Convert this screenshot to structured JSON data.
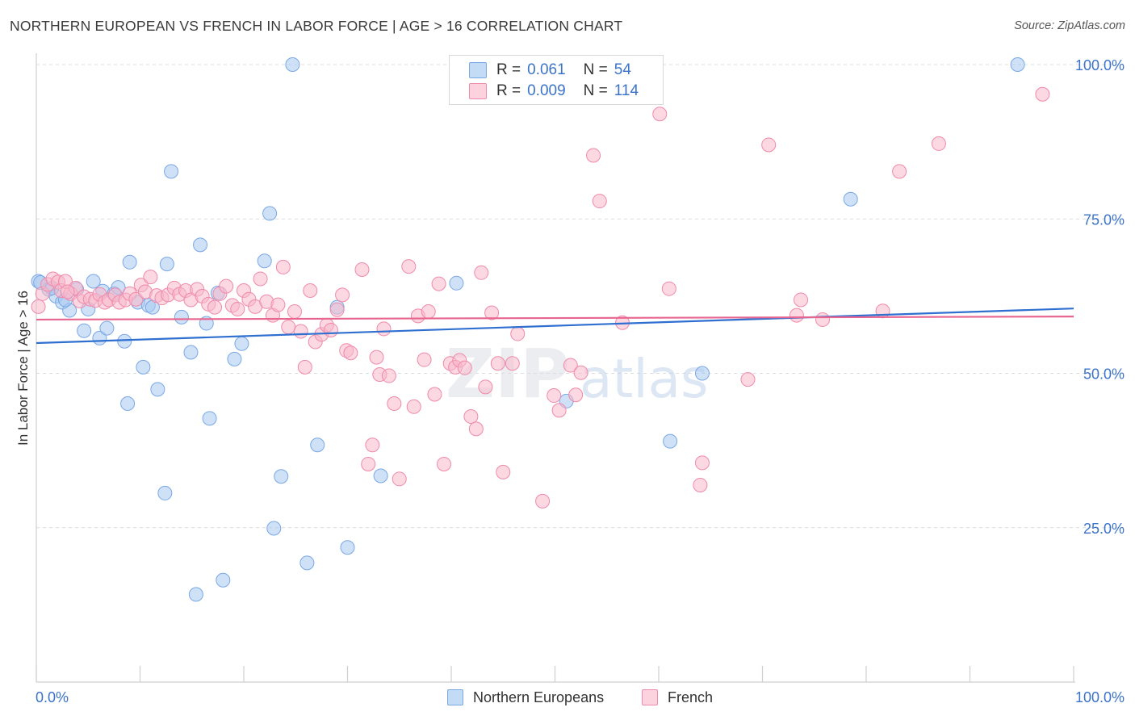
{
  "header": {
    "title": "NORTHERN EUROPEAN VS FRENCH IN LABOR FORCE | AGE > 16 CORRELATION CHART",
    "source": "Source: ZipAtlas.com"
  },
  "watermark": {
    "zip": "ZIP",
    "atlas": "atlas"
  },
  "legend_top": {
    "rows": [
      {
        "r_label": "R =",
        "r_value": "0.061",
        "n_label": "N =",
        "n_value": "54",
        "color": "#a8c8f0"
      },
      {
        "r_label": "R =",
        "r_value": "0.009",
        "n_label": "N =",
        "n_value": "114",
        "color": "#f7b8cb"
      }
    ]
  },
  "legend_bottom": {
    "northern": "Northern Europeans",
    "french": "French"
  },
  "chart_data": {
    "type": "scatter",
    "title": "NORTHERN EUROPEAN VS FRENCH IN LABOR FORCE | AGE > 16 CORRELATION CHART",
    "xlabel": "",
    "ylabel": "In Labor Force | Age > 16",
    "xlim": [
      0,
      100
    ],
    "ylim": [
      0,
      100
    ],
    "x_tick_labels": [
      "0.0%",
      "100.0%"
    ],
    "y_tick_labels": [
      "25.0%",
      "50.0%",
      "75.0%",
      "100.0%"
    ],
    "y_ticks": [
      25,
      50,
      75,
      100
    ],
    "grid": true,
    "series": [
      {
        "name": "Northern Europeans",
        "color": "#7aa8e6",
        "fill": "#a8c8f0",
        "line_color": "#2f6fd0",
        "trend": [
          [
            0,
            54.9
          ],
          [
            100,
            60.5
          ]
        ],
        "points": [
          [
            0.2,
            64.9
          ],
          [
            1.2,
            63.6
          ],
          [
            1.9,
            62.5
          ],
          [
            2.5,
            61.5
          ],
          [
            3.2,
            60.2
          ],
          [
            3.9,
            63.6
          ],
          [
            4.6,
            56.9
          ],
          [
            5.0,
            60.4
          ],
          [
            5.5,
            64.9
          ],
          [
            6.1,
            55.7
          ],
          [
            6.4,
            63.3
          ],
          [
            6.8,
            57.3
          ],
          [
            7.5,
            62.9
          ],
          [
            7.9,
            63.9
          ],
          [
            8.5,
            55.2
          ],
          [
            8.8,
            45.1
          ],
          [
            9.0,
            68.0
          ],
          [
            9.8,
            61.5
          ],
          [
            10.3,
            51.0
          ],
          [
            10.8,
            61.0
          ],
          [
            11.2,
            60.7
          ],
          [
            11.7,
            47.4
          ],
          [
            12.4,
            30.6
          ],
          [
            12.6,
            67.7
          ],
          [
            13.0,
            82.7
          ],
          [
            14.0,
            59.1
          ],
          [
            14.9,
            53.4
          ],
          [
            15.4,
            14.2
          ],
          [
            15.8,
            70.8
          ],
          [
            16.4,
            58.1
          ],
          [
            16.7,
            42.7
          ],
          [
            17.5,
            63.0
          ],
          [
            18.0,
            16.5
          ],
          [
            19.1,
            52.3
          ],
          [
            19.8,
            54.8
          ],
          [
            22.0,
            68.2
          ],
          [
            22.5,
            75.9
          ],
          [
            22.9,
            24.9
          ],
          [
            23.6,
            33.3
          ],
          [
            24.7,
            100.0
          ],
          [
            26.1,
            19.3
          ],
          [
            27.1,
            38.4
          ],
          [
            29.0,
            60.7
          ],
          [
            30.0,
            21.8
          ],
          [
            33.2,
            33.4
          ],
          [
            40.5,
            64.6
          ],
          [
            51.1,
            45.5
          ],
          [
            61.1,
            39.0
          ],
          [
            64.2,
            50.0
          ],
          [
            78.5,
            78.2
          ],
          [
            94.6,
            100.0
          ],
          [
            0.4,
            64.7
          ],
          [
            1.5,
            63.8
          ],
          [
            2.8,
            61.9
          ]
        ]
      },
      {
        "name": "French",
        "color": "#f08aaa",
        "fill": "#f7b8cb",
        "line_color": "#e8658f",
        "trend": [
          [
            0,
            58.7
          ],
          [
            100,
            59.2
          ]
        ],
        "points": [
          [
            0.2,
            60.8
          ],
          [
            0.6,
            62.9
          ],
          [
            1.1,
            64.4
          ],
          [
            1.6,
            65.3
          ],
          [
            2.1,
            64.8
          ],
          [
            2.4,
            63.4
          ],
          [
            2.8,
            64.9
          ],
          [
            3.3,
            62.9
          ],
          [
            3.8,
            63.8
          ],
          [
            4.2,
            61.7
          ],
          [
            4.6,
            62.4
          ],
          [
            5.2,
            62.0
          ],
          [
            5.7,
            61.8
          ],
          [
            6.1,
            62.8
          ],
          [
            6.6,
            61.5
          ],
          [
            7.0,
            61.9
          ],
          [
            7.6,
            62.7
          ],
          [
            8.0,
            61.5
          ],
          [
            8.6,
            61.9
          ],
          [
            9.0,
            62.9
          ],
          [
            9.6,
            62.0
          ],
          [
            10.1,
            64.3
          ],
          [
            10.5,
            63.2
          ],
          [
            11.0,
            65.6
          ],
          [
            11.6,
            62.6
          ],
          [
            12.1,
            62.2
          ],
          [
            12.7,
            62.7
          ],
          [
            13.3,
            63.8
          ],
          [
            13.8,
            62.8
          ],
          [
            14.4,
            63.4
          ],
          [
            14.9,
            61.9
          ],
          [
            15.5,
            63.6
          ],
          [
            16.0,
            62.5
          ],
          [
            16.6,
            61.2
          ],
          [
            17.2,
            60.7
          ],
          [
            17.7,
            62.9
          ],
          [
            18.3,
            64.1
          ],
          [
            18.9,
            61.0
          ],
          [
            19.4,
            60.4
          ],
          [
            20.0,
            63.4
          ],
          [
            20.5,
            62.0
          ],
          [
            21.1,
            60.8
          ],
          [
            21.6,
            65.3
          ],
          [
            22.2,
            61.6
          ],
          [
            22.8,
            59.4
          ],
          [
            23.3,
            61.1
          ],
          [
            23.8,
            67.2
          ],
          [
            24.3,
            57.5
          ],
          [
            24.9,
            60.0
          ],
          [
            25.5,
            56.8
          ],
          [
            25.9,
            51.0
          ],
          [
            26.4,
            63.4
          ],
          [
            26.9,
            55.1
          ],
          [
            27.5,
            56.3
          ],
          [
            28.0,
            57.8
          ],
          [
            28.4,
            57.0
          ],
          [
            29.0,
            60.3
          ],
          [
            29.5,
            62.7
          ],
          [
            29.9,
            53.7
          ],
          [
            30.3,
            53.3
          ],
          [
            31.4,
            66.8
          ],
          [
            32.0,
            35.3
          ],
          [
            32.4,
            38.4
          ],
          [
            32.8,
            52.6
          ],
          [
            33.1,
            49.8
          ],
          [
            33.5,
            57.2
          ],
          [
            34.0,
            49.6
          ],
          [
            34.5,
            45.1
          ],
          [
            35.0,
            32.9
          ],
          [
            35.9,
            67.3
          ],
          [
            36.4,
            44.6
          ],
          [
            36.8,
            59.3
          ],
          [
            37.4,
            52.2
          ],
          [
            37.8,
            60.0
          ],
          [
            38.4,
            46.6
          ],
          [
            38.8,
            64.5
          ],
          [
            39.3,
            35.3
          ],
          [
            39.9,
            51.6
          ],
          [
            40.4,
            51.0
          ],
          [
            40.8,
            52.1
          ],
          [
            41.3,
            50.9
          ],
          [
            41.9,
            43.0
          ],
          [
            42.4,
            41.0
          ],
          [
            42.9,
            66.3
          ],
          [
            43.3,
            47.8
          ],
          [
            43.9,
            59.8
          ],
          [
            44.5,
            51.6
          ],
          [
            45.0,
            34.0
          ],
          [
            45.4,
            95.3
          ],
          [
            45.9,
            51.6
          ],
          [
            46.4,
            56.4
          ],
          [
            48.8,
            29.3
          ],
          [
            49.9,
            46.4
          ],
          [
            50.4,
            44.0
          ],
          [
            51.5,
            51.3
          ],
          [
            52.0,
            46.5
          ],
          [
            52.5,
            50.1
          ],
          [
            53.7,
            85.3
          ],
          [
            54.3,
            77.9
          ],
          [
            56.5,
            58.2
          ],
          [
            60.1,
            92.0
          ],
          [
            61.0,
            63.7
          ],
          [
            64.2,
            35.5
          ],
          [
            64.0,
            31.9
          ],
          [
            68.6,
            49.0
          ],
          [
            70.6,
            87.0
          ],
          [
            73.3,
            59.4
          ],
          [
            73.7,
            61.9
          ],
          [
            75.8,
            58.7
          ],
          [
            81.6,
            60.1
          ],
          [
            83.2,
            82.7
          ],
          [
            87.0,
            87.2
          ],
          [
            97.0,
            95.2
          ],
          [
            3.0,
            63.2
          ]
        ]
      }
    ]
  }
}
